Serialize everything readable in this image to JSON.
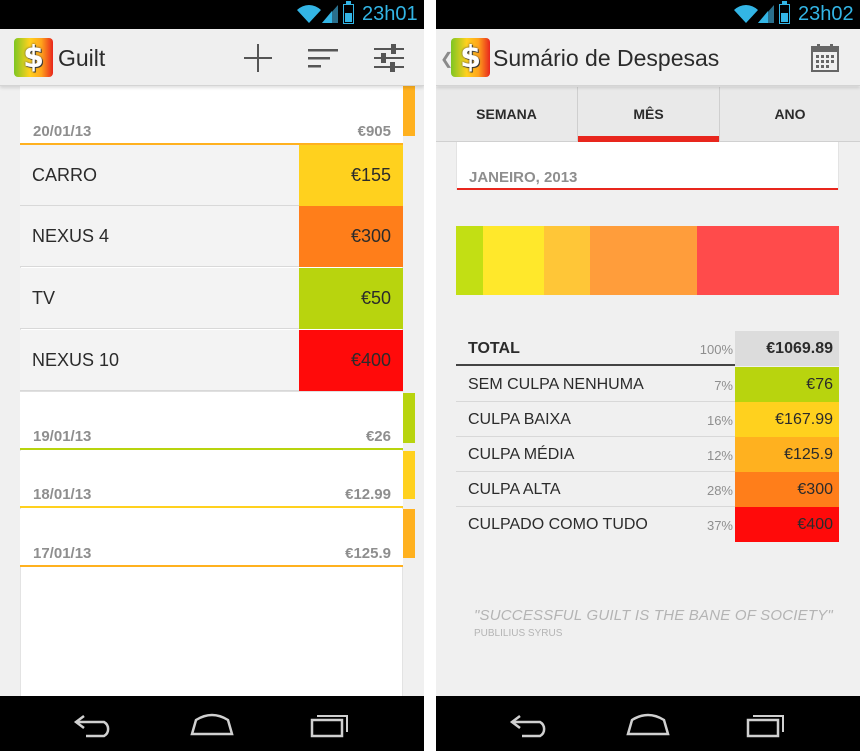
{
  "status_left": {
    "time": "23h01"
  },
  "status_right": {
    "time": "23h02"
  },
  "left_app": {
    "title": "Guilt",
    "logo_glyph": "$",
    "actions": [
      "add-icon",
      "sort-icon",
      "filter-icon"
    ],
    "days": [
      {
        "date": "20/01/13",
        "total": "€905",
        "color": "#ffb11f",
        "items": [
          {
            "name": "CARRO",
            "amount": "€155",
            "color": "#ffd11e"
          },
          {
            "name": "NEXUS 4",
            "amount": "€300",
            "color": "#ff7e1a"
          },
          {
            "name": "TV",
            "amount": "€50",
            "color": "#b8d40e"
          },
          {
            "name": "NEXUS 10",
            "amount": "€400",
            "color": "#ff0a0a"
          }
        ]
      },
      {
        "date": "19/01/13",
        "total": "€26",
        "color": "#b8d40e",
        "items": []
      },
      {
        "date": "18/01/13",
        "total": "€12.99",
        "color": "#ffd11e",
        "items": []
      },
      {
        "date": "17/01/13",
        "total": "€125.9",
        "color": "#ffb11f",
        "items": []
      }
    ]
  },
  "right_app": {
    "title": "Sumário de Despesas",
    "logo_glyph": "$",
    "calendar_icon": "calendar-icon",
    "tabs": [
      {
        "label": "SEMANA",
        "active": false
      },
      {
        "label": "MÊS",
        "active": true
      },
      {
        "label": "ANO",
        "active": false
      }
    ],
    "period": "JANEIRO, 2013",
    "distribution": [
      {
        "share": 7,
        "color": "#c2df14"
      },
      {
        "share": 16,
        "color": "#ffe82b"
      },
      {
        "share": 12,
        "color": "#ffc637"
      },
      {
        "share": 28,
        "color": "#ff9d3b"
      },
      {
        "share": 37,
        "color": "#ff4b4b"
      }
    ],
    "summary": {
      "total": {
        "label": "TOTAL",
        "pct": "100%",
        "amount": "€1069.89",
        "color": "#dcdcdc"
      },
      "rows": [
        {
          "label": "SEM CULPA NENHUMA",
          "pct": "7%",
          "amount": "€76",
          "color": "#b8d40e"
        },
        {
          "label": "CULPA BAIXA",
          "pct": "16%",
          "amount": "€167.99",
          "color": "#ffd11e"
        },
        {
          "label": "CULPA MÉDIA",
          "pct": "12%",
          "amount": "€125.9",
          "color": "#ffb11f"
        },
        {
          "label": "CULPA ALTA",
          "pct": "28%",
          "amount": "€300",
          "color": "#ff7e1a"
        },
        {
          "label": "CULPADO COMO TUDO",
          "pct": "37%",
          "amount": "€400",
          "color": "#ff0a0a"
        }
      ]
    },
    "quote": "\"SUCCESSFUL GUILT IS THE BANE OF SOCIETY\"",
    "quote_author": "PUBLILIUS SYRUS"
  },
  "nav": [
    "back-icon",
    "home-icon",
    "recents-icon"
  ]
}
